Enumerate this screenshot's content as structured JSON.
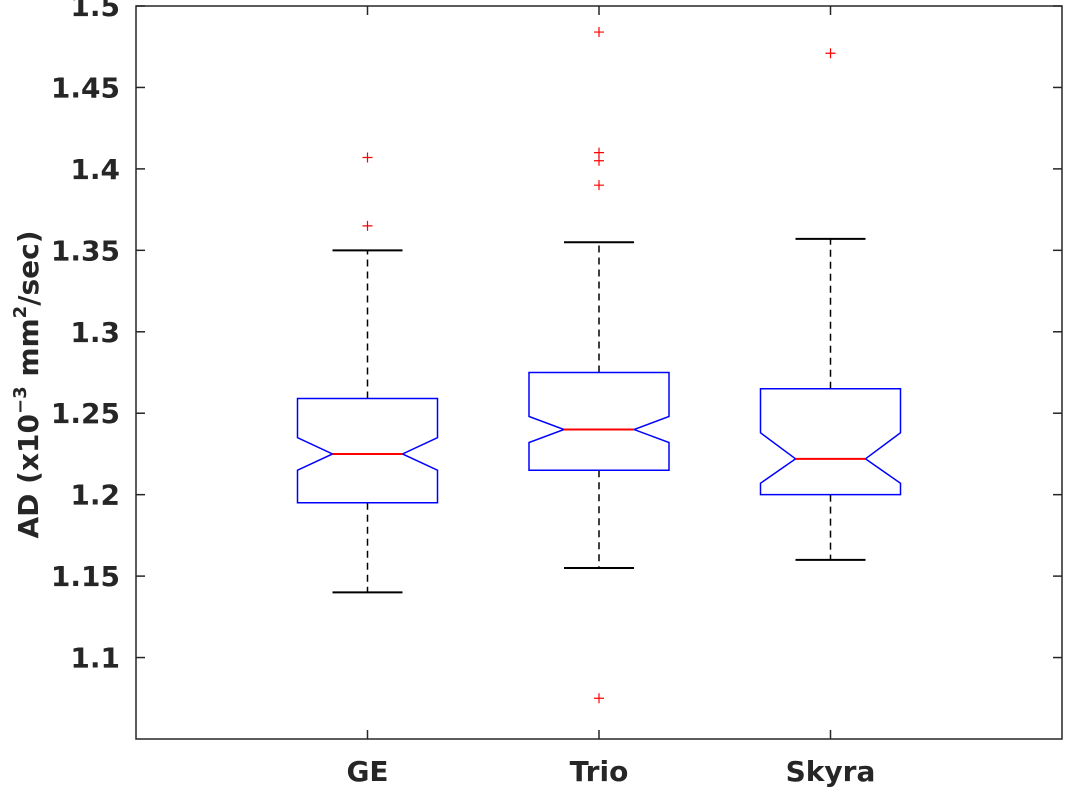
{
  "chart_data": {
    "type": "boxplot",
    "notched": true,
    "title": "",
    "xlabel": "",
    "ylabel": {
      "prefix": "AD (x10",
      "exp1": "−3",
      "middle": " mm",
      "exp2": "2",
      "suffix": "/sec)"
    },
    "ylim": [
      1.05,
      1.5
    ],
    "yticks": [
      1.1,
      1.15,
      1.2,
      1.25,
      1.3,
      1.35,
      1.4,
      1.45,
      1.5
    ],
    "ytick_labels": [
      "1.1",
      "1.15",
      "1.2",
      "1.25",
      "1.3",
      "1.35",
      "1.4",
      "1.45",
      "1.5"
    ],
    "categories": [
      "GE",
      "Trio",
      "Skyra"
    ],
    "boxes": [
      {
        "category": "GE",
        "whisker_low": 1.14,
        "q1": 1.195,
        "median": 1.225,
        "q3": 1.259,
        "whisker_high": 1.35,
        "notch_low": 1.215,
        "notch_high": 1.235,
        "outliers": [
          1.365,
          1.407
        ]
      },
      {
        "category": "Trio",
        "whisker_low": 1.155,
        "q1": 1.215,
        "median": 1.24,
        "q3": 1.275,
        "whisker_high": 1.355,
        "notch_low": 1.232,
        "notch_high": 1.248,
        "outliers": [
          1.075,
          1.39,
          1.405,
          1.41,
          1.484
        ]
      },
      {
        "category": "Skyra",
        "whisker_low": 1.16,
        "q1": 1.2,
        "median": 1.222,
        "q3": 1.265,
        "whisker_high": 1.357,
        "notch_low": 1.207,
        "notch_high": 1.238,
        "outliers": [
          1.471
        ]
      }
    ],
    "colors": {
      "box": "#0000ff",
      "median": "#ff0000",
      "whisker": "#000000",
      "outlier": "#ff0000",
      "axis": "#262626"
    },
    "grid": false,
    "legend": "none"
  }
}
